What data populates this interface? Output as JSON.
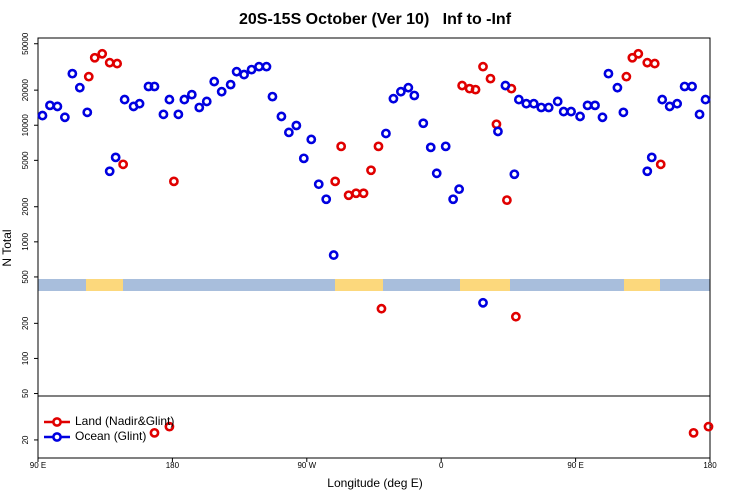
{
  "chart_data": {
    "type": "scatter",
    "title": "20S-15S October (Ver 10)   Inf to -Inf",
    "x_label": "Longitude (deg E)",
    "y_label": "N Total",
    "ylog": true,
    "xlim": [
      90,
      540
    ],
    "xticks": [
      {
        "value": 90,
        "label": "90 E"
      },
      180,
      {
        "value": 270,
        "label": "90 W"
      },
      {
        "value": 360,
        "label": "0"
      },
      {
        "value": 450,
        "label": "90 E"
      },
      {
        "value": 540,
        "label": "180"
      }
    ],
    "ylim": [
      14,
      56000
    ],
    "yticks": [
      20,
      50,
      100,
      200,
      500,
      1000,
      2000,
      5000,
      10000,
      20000,
      50000
    ],
    "legend": "lower left",
    "series": [
      {
        "name": "Land (Nadir&Glint)",
        "color": "#e00000",
        "x": [
          124,
          128,
          133,
          138,
          143,
          147,
          181,
          168,
          178,
          289,
          293,
          298,
          303,
          308,
          313,
          318,
          320,
          374,
          379,
          383,
          388,
          393,
          397,
          404,
          407,
          410,
          484,
          488,
          492,
          498,
          503,
          507,
          529,
          539
        ],
        "values": [
          26100,
          37900,
          41000,
          34400,
          33800,
          4620,
          3300,
          23,
          26,
          3300,
          6590,
          2510,
          2610,
          2610,
          4110,
          6590,
          267,
          21900,
          20600,
          20200,
          31800,
          25100,
          10200,
          2280,
          20600,
          228,
          26100,
          37900,
          41000,
          34400,
          33800,
          4620,
          23,
          26
        ]
      },
      {
        "name": "Ocean (Glint)",
        "color": "#0000e0",
        "x": [
          93,
          98,
          103,
          108,
          113,
          118,
          123,
          138,
          142,
          148,
          154,
          158,
          164,
          168,
          174,
          178,
          184,
          188,
          193,
          198,
          203,
          208,
          213,
          219,
          223,
          228,
          233,
          238,
          243,
          247,
          253,
          258,
          263,
          268,
          273,
          278,
          283,
          288,
          323,
          328,
          333,
          338,
          342,
          348,
          353,
          357,
          363,
          368,
          372,
          388,
          398,
          403,
          409,
          412,
          417,
          422,
          427,
          432,
          438,
          442,
          447,
          453,
          458,
          463,
          468,
          472,
          478,
          482,
          498,
          501,
          508,
          513,
          518,
          523,
          528,
          533,
          537
        ],
        "values": [
          12100,
          14800,
          14500,
          11700,
          27700,
          21000,
          12900,
          4030,
          5300,
          16600,
          14500,
          15300,
          21500,
          21500,
          12400,
          16600,
          12400,
          16600,
          18300,
          14200,
          16000,
          23700,
          19400,
          22300,
          28800,
          27200,
          30000,
          31800,
          31800,
          17600,
          11900,
          8680,
          9950,
          5200,
          7560,
          3120,
          2320,
          770,
          8500,
          16900,
          19400,
          21000,
          18000,
          10400,
          6460,
          3870,
          6590,
          2320,
          2830,
          300,
          8850,
          21900,
          3800,
          16600,
          15300,
          15300,
          14200,
          14200,
          16000,
          13100,
          13100,
          11900,
          14800,
          14800,
          11700,
          27700,
          21000,
          12900,
          4030,
          5300,
          16600,
          14500,
          15300,
          21500,
          21500,
          12400,
          16600
        ]
      }
    ]
  }
}
